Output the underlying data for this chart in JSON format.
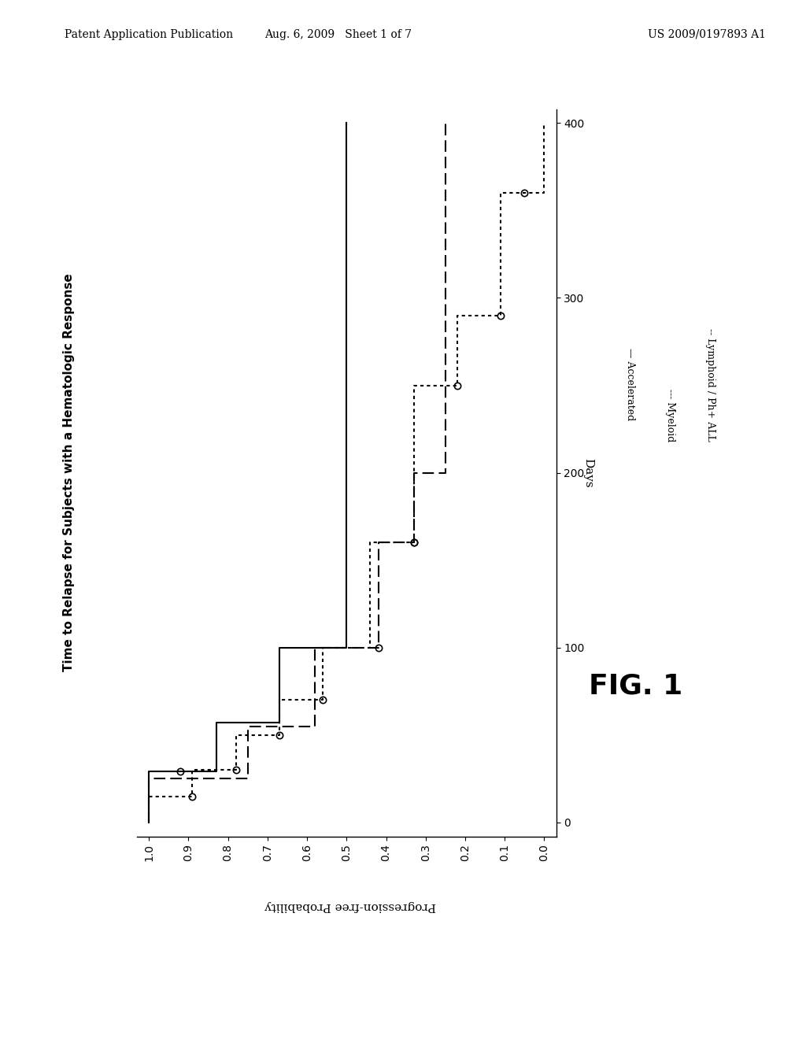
{
  "title": "Time to Relapse for Subjects with a Hematologic Response",
  "xlabel_rotated": "Days",
  "ylabel_rotated": "Progression-free Probability",
  "header_left": "Patent Application Publication",
  "header_center": "Aug. 6, 2009   Sheet 1 of 7",
  "header_right": "US 2009/0197893 A1",
  "fig_label": "FIG. 1",
  "accelerated": {
    "label": "— Accelerated",
    "days": [
      0,
      29,
      29,
      57,
      57,
      100,
      100,
      400
    ],
    "prob": [
      1.0,
      1.0,
      0.83,
      0.83,
      0.67,
      0.67,
      0.5,
      0.5
    ],
    "censor_days": [
      29
    ],
    "censor_prob": [
      0.92
    ]
  },
  "myeloid": {
    "label": "--- Myeloid",
    "days": [
      0,
      25,
      25,
      55,
      55,
      100,
      100,
      160,
      160,
      200,
      200,
      400
    ],
    "prob": [
      1.0,
      1.0,
      0.75,
      0.75,
      0.58,
      0.58,
      0.42,
      0.42,
      0.33,
      0.33,
      0.25,
      0.25
    ],
    "censor_days": [
      100,
      160
    ],
    "censor_prob": [
      0.42,
      0.33
    ]
  },
  "lymphoid": {
    "label": "-- Lymphoid / Ph+ ALL",
    "days": [
      0,
      15,
      15,
      30,
      30,
      50,
      50,
      70,
      70,
      100,
      100,
      160,
      160,
      250,
      250,
      290,
      290,
      360,
      360,
      400
    ],
    "prob": [
      1.0,
      1.0,
      0.89,
      0.89,
      0.78,
      0.78,
      0.67,
      0.67,
      0.56,
      0.56,
      0.44,
      0.44,
      0.33,
      0.33,
      0.22,
      0.22,
      0.11,
      0.11,
      0.0,
      0.0
    ],
    "censor_days": [
      15,
      30,
      50,
      70,
      160,
      250,
      290,
      360
    ],
    "censor_prob": [
      0.89,
      0.78,
      0.67,
      0.56,
      0.33,
      0.22,
      0.11,
      0.05
    ]
  }
}
